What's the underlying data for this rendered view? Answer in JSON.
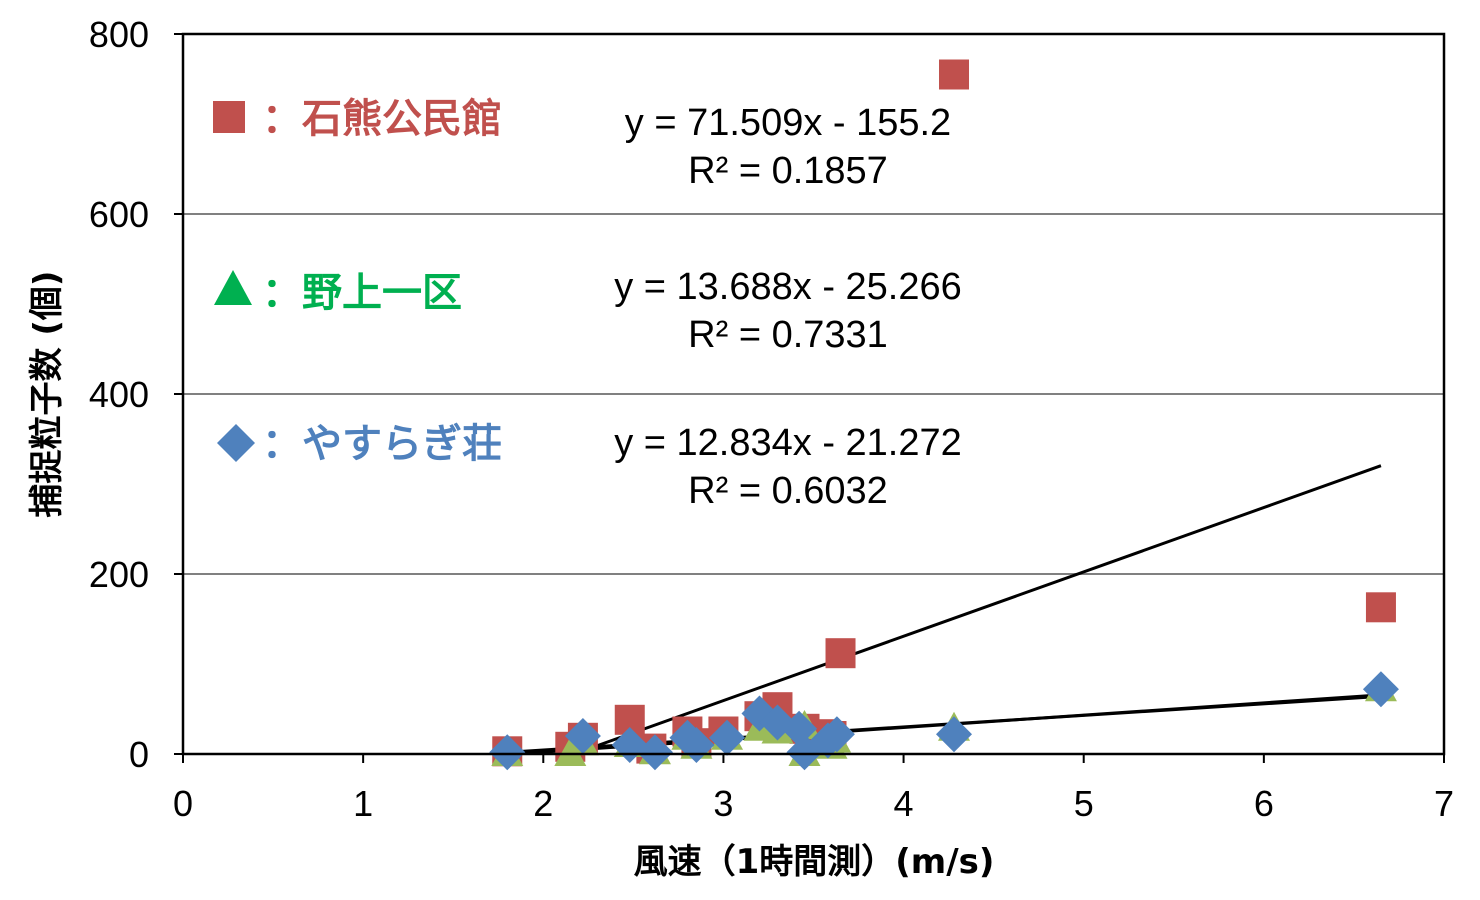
{
  "chart_data": {
    "type": "scatter",
    "xlabel": "風速（1時間測）(m/s)",
    "ylabel": "捕捉粒子数 (個)",
    "xlim": [
      0,
      7
    ],
    "ylim": [
      0,
      800
    ],
    "xticks": [
      "0",
      "1",
      "2",
      "3",
      "4",
      "5",
      "6",
      "7"
    ],
    "yticks": [
      "0",
      "200",
      "400",
      "600",
      "800"
    ],
    "grid": "horizontal",
    "series": [
      {
        "name": "：石熊公民館",
        "marker": "square",
        "color": "#C0504D",
        "equation": "y = 71.509x - 155.2",
        "r2": "R² = 0.1857",
        "trend_x": [
          2.25,
          6.65
        ],
        "points": [
          [
            1.8,
            3
          ],
          [
            2.15,
            8
          ],
          [
            2.22,
            18
          ],
          [
            2.48,
            38
          ],
          [
            2.6,
            6
          ],
          [
            2.8,
            25
          ],
          [
            2.85,
            12
          ],
          [
            3.0,
            25
          ],
          [
            3.2,
            42
          ],
          [
            3.3,
            52
          ],
          [
            3.45,
            28
          ],
          [
            3.55,
            22
          ],
          [
            3.6,
            20
          ],
          [
            3.65,
            112
          ],
          [
            4.28,
            755
          ],
          [
            6.65,
            163
          ]
        ]
      },
      {
        "name": "：野上一区",
        "marker": "triangle",
        "color": "#00B050",
        "marker_color": "#9BBB59",
        "equation": "y = 13.688x - 25.266",
        "r2": "R² = 0.7331",
        "trend_x": [
          1.8,
          6.65
        ],
        "points": [
          [
            1.8,
            0
          ],
          [
            2.15,
            0
          ],
          [
            2.22,
            12
          ],
          [
            2.48,
            10
          ],
          [
            2.62,
            2
          ],
          [
            2.8,
            18
          ],
          [
            2.85,
            8
          ],
          [
            3.02,
            18
          ],
          [
            3.2,
            28
          ],
          [
            3.3,
            25
          ],
          [
            3.45,
            0
          ],
          [
            3.45,
            30
          ],
          [
            3.6,
            8
          ],
          [
            3.62,
            15
          ],
          [
            4.28,
            28
          ],
          [
            6.65,
            72
          ]
        ]
      },
      {
        "name": "：やすらぎ荘",
        "marker": "diamond",
        "color": "#4F81BD",
        "equation": "y = 12.834x - 21.272",
        "r2": "R² = 0.6032",
        "trend_x": [
          1.8,
          6.65
        ],
        "points": [
          [
            1.8,
            2
          ],
          [
            2.22,
            20
          ],
          [
            2.48,
            10
          ],
          [
            2.62,
            2
          ],
          [
            2.8,
            18
          ],
          [
            2.85,
            10
          ],
          [
            3.02,
            18
          ],
          [
            3.2,
            45
          ],
          [
            3.3,
            35
          ],
          [
            3.42,
            28
          ],
          [
            3.45,
            2
          ],
          [
            3.58,
            15
          ],
          [
            3.63,
            22
          ],
          [
            4.28,
            22
          ],
          [
            6.65,
            72
          ]
        ]
      }
    ]
  }
}
